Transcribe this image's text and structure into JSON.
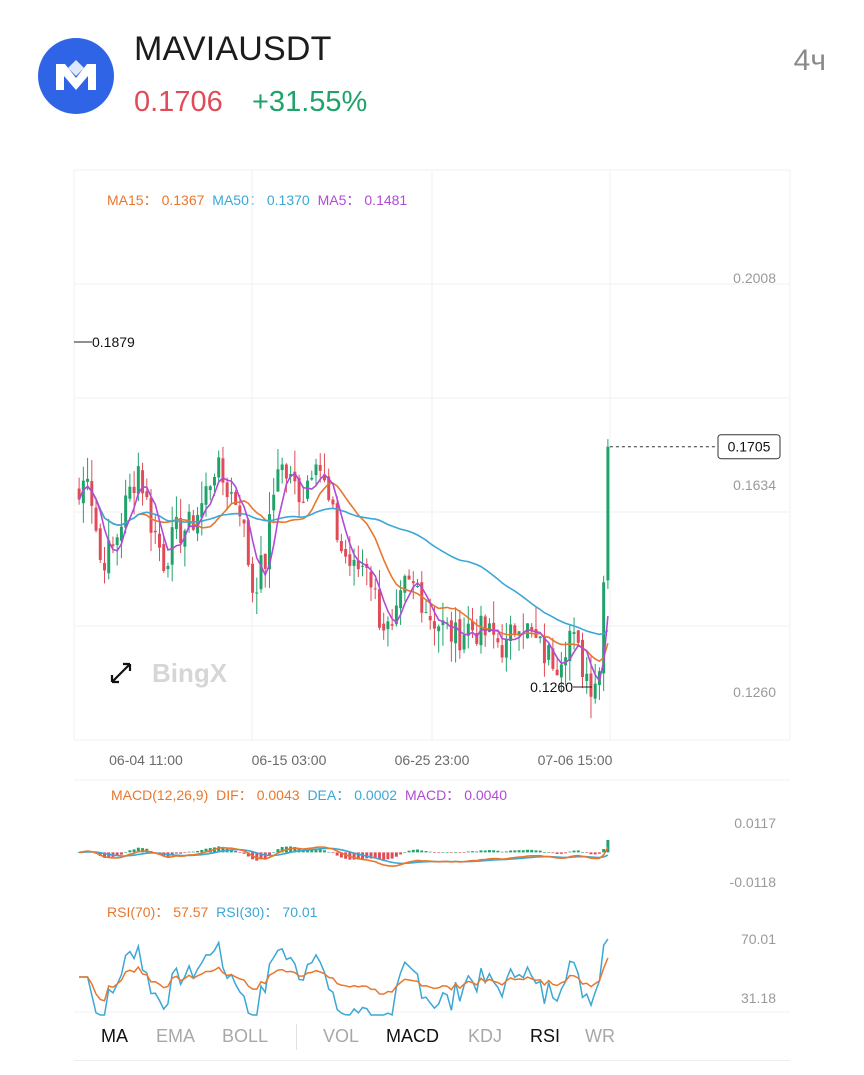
{
  "header": {
    "symbol": "MAVIAUSDT",
    "price": "0.1706",
    "change": "+31.55%",
    "interval": "4ч",
    "logo_icon": "mavia-logo-icon"
  },
  "colors": {
    "up": "#1fa36b",
    "down": "#e14b57",
    "ma15": "#e8772e",
    "ma50": "#3aa7d6",
    "ma5": "#b14ad6",
    "brand": "#2f64e6"
  },
  "main_legend": {
    "ma15_label": "MA15：",
    "ma15_value": "0.1367",
    "ma50_label": "MA50：",
    "ma50_value": "0.1370",
    "ma5_label": "MA5：",
    "ma5_value": "0.1481"
  },
  "macd_legend": {
    "title": "MACD(12,26,9)",
    "dif_label": "DIF：",
    "dif_value": "0.0043",
    "dea_label": "DEA：",
    "dea_value": "0.0002",
    "macd_label": "MACD：",
    "macd_value": "0.0040"
  },
  "rsi_legend": {
    "rsi70_label": "RSI(70)：",
    "rsi70_value": "57.57",
    "rsi30_label": "RSI(30)：",
    "rsi30_value": "70.01"
  },
  "watermark": "BingX",
  "tabs": [
    {
      "label": "MA",
      "active": true
    },
    {
      "label": "EMA",
      "active": false
    },
    {
      "label": "BOLL",
      "active": false
    },
    {
      "label": "VOL",
      "active": false
    },
    {
      "label": "MACD",
      "active": true
    },
    {
      "label": "KDJ",
      "active": false
    },
    {
      "label": "RSI",
      "active": true
    },
    {
      "label": "WR",
      "active": false
    }
  ],
  "chart_data": [
    {
      "type": "candlestick",
      "ylim": [
        0.1175,
        0.2205
      ],
      "y_ticks": [
        "0.2008",
        "0.1634",
        "0.1260"
      ],
      "y_tick_values": [
        0.2008,
        0.1634,
        0.126
      ],
      "x_ticks": [
        "06-04 11:00",
        "06-15 03:00",
        "06-25 23:00",
        "07-06 15:00"
      ],
      "high_marker": "0.1879",
      "low_marker": "0.1260",
      "last_price_label": "0.1705",
      "last_price": 0.1705,
      "anchors": [
        [
          0,
          0.161
        ],
        [
          2,
          0.167
        ],
        [
          5,
          0.15
        ],
        [
          8,
          0.152
        ],
        [
          11,
          0.16
        ],
        [
          14,
          0.167
        ],
        [
          17,
          0.157
        ],
        [
          20,
          0.15
        ],
        [
          23,
          0.155
        ],
        [
          26,
          0.156
        ],
        [
          29,
          0.16
        ],
        [
          32,
          0.167
        ],
        [
          35,
          0.163
        ],
        [
          38,
          0.16
        ],
        [
          41,
          0.145
        ],
        [
          44,
          0.15
        ],
        [
          47,
          0.168
        ],
        [
          50,
          0.164
        ],
        [
          53,
          0.162
        ],
        [
          56,
          0.17
        ],
        [
          59,
          0.16
        ],
        [
          62,
          0.152
        ],
        [
          65,
          0.148
        ],
        [
          68,
          0.15
        ],
        [
          71,
          0.14
        ],
        [
          74,
          0.136
        ],
        [
          77,
          0.145
        ],
        [
          80,
          0.145
        ],
        [
          83,
          0.14
        ],
        [
          86,
          0.138
        ],
        [
          89,
          0.136
        ],
        [
          92,
          0.138
        ],
        [
          95,
          0.137
        ],
        [
          98,
          0.136
        ],
        [
          101,
          0.134
        ],
        [
          104,
          0.14
        ],
        [
          107,
          0.136
        ],
        [
          110,
          0.133
        ],
        [
          113,
          0.132
        ],
        [
          116,
          0.137
        ],
        [
          119,
          0.131
        ],
        [
          121,
          0.128
        ],
        [
          123,
          0.13
        ],
        [
          124,
          0.146
        ],
        [
          125,
          0.1705
        ]
      ],
      "series": [
        {
          "name": "MA15",
          "period": 15
        },
        {
          "name": "MA50",
          "period": 50
        },
        {
          "name": "MA5",
          "period": 5
        }
      ]
    },
    {
      "type": "histogram+line",
      "y_ticks": [
        "0.0117",
        "-0.0118"
      ],
      "y_tick_values": [
        0.0117,
        -0.0118
      ],
      "series": [
        {
          "name": "DIF",
          "values": "derived from closes (EMA12-EMA26)"
        },
        {
          "name": "DEA",
          "values": "EMA9 of DIF"
        },
        {
          "name": "MACD",
          "values": "DIF-DEA"
        }
      ]
    },
    {
      "type": "line",
      "y_ticks": [
        "70.01",
        "31.18"
      ],
      "y_tick_values": [
        70.01,
        31.18
      ],
      "series": [
        {
          "name": "RSI(70)"
        },
        {
          "name": "RSI(30)"
        }
      ]
    }
  ]
}
